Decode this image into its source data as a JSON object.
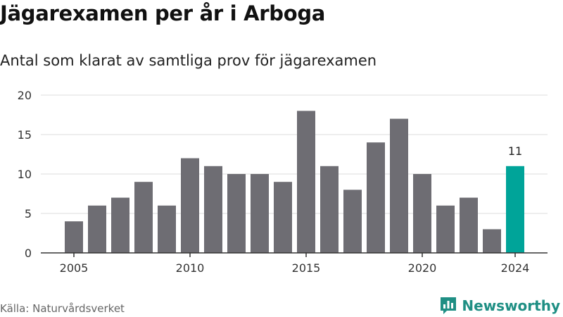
{
  "header": {
    "title": "Jägarexamen per år i Arboga",
    "subtitle": "Antal som klarat av samtliga prov för jägarexamen"
  },
  "footer": {
    "source": "Källa: Naturvårdsverket",
    "brand": "Newsworthy",
    "brand_icon": "bar-chart-logo-icon"
  },
  "colors": {
    "bar": "#6e6d73",
    "highlight": "#00a499",
    "grid": "#dcdcdc",
    "axis": "#333333",
    "brand": "#1f8f84"
  },
  "chart_data": {
    "type": "bar",
    "categories": [
      2005,
      2006,
      2007,
      2008,
      2009,
      2010,
      2011,
      2012,
      2013,
      2014,
      2015,
      2016,
      2017,
      2018,
      2019,
      2020,
      2021,
      2022,
      2023,
      2024
    ],
    "values": [
      4,
      6,
      7,
      9,
      6,
      12,
      11,
      10,
      10,
      9,
      18,
      11,
      8,
      14,
      17,
      10,
      6,
      7,
      3,
      11
    ],
    "highlight": {
      "category": 2024,
      "value_label": "11"
    },
    "x_ticks": [
      "2005",
      "2010",
      "2015",
      "2020",
      "2024"
    ],
    "y_ticks": [
      "0",
      "5",
      "10",
      "15",
      "20"
    ],
    "ylim": [
      0,
      20
    ],
    "title": "Jägarexamen per år i Arboga",
    "subtitle": "Antal som klarat av samtliga prov för jägarexamen",
    "xlabel": "",
    "ylabel": "",
    "grid": "horizontal",
    "legend": "none"
  }
}
